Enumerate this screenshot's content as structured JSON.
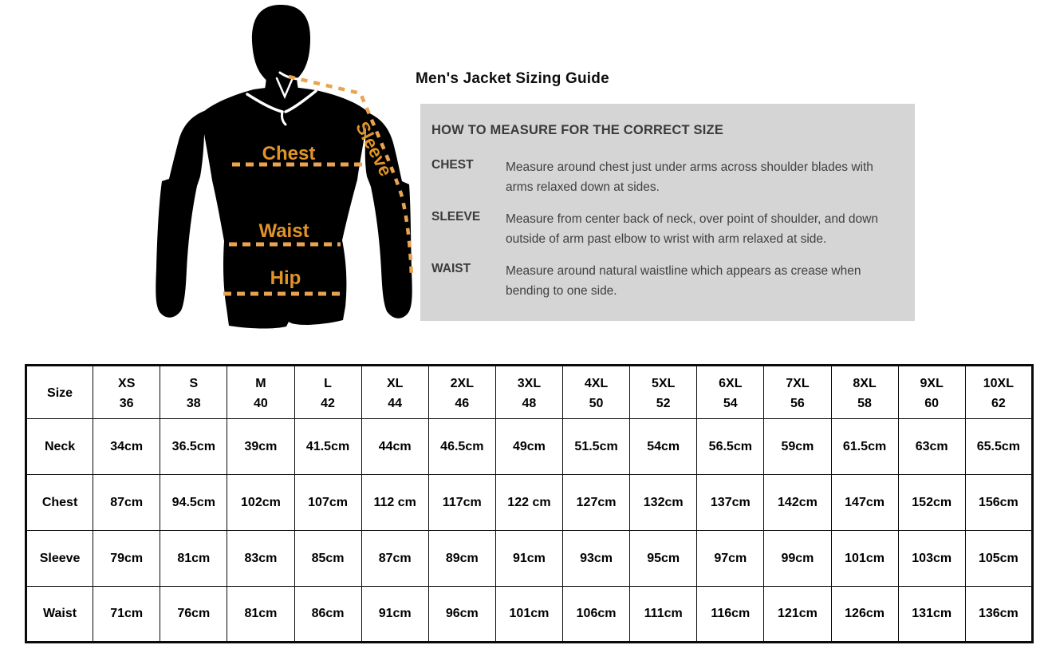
{
  "title": "Men's Jacket Sizing Guide",
  "colors": {
    "dash_orange": "#E9A452",
    "label_orange": "#E09428",
    "gray_box": "#d5d5d5",
    "silhouette": "#000000"
  },
  "figure": {
    "labels": {
      "chest": "Chest",
      "waist": "Waist",
      "hip": "Hip",
      "sleeve": "Sleeve"
    }
  },
  "measure_box": {
    "heading": "HOW TO MEASURE FOR THE CORRECT SIZE",
    "items": [
      {
        "term": "CHEST",
        "desc": "Measure around chest just under arms across shoulder blades with arms relaxed down at sides."
      },
      {
        "term": "SLEEVE",
        "desc": "Measure from center back of neck, over point of shoulder, and down outside of arm past elbow to wrist with arm relaxed at side."
      },
      {
        "term": "WAIST",
        "desc": "Measure around natural waistline which appears as crease when bending to one side."
      }
    ]
  },
  "size_table": {
    "corner_label": "Size",
    "sizes": [
      {
        "name": "XS",
        "num": "36"
      },
      {
        "name": "S",
        "num": "38"
      },
      {
        "name": "M",
        "num": "40"
      },
      {
        "name": "L",
        "num": "42"
      },
      {
        "name": "XL",
        "num": "44"
      },
      {
        "name": "2XL",
        "num": "46"
      },
      {
        "name": "3XL",
        "num": "48"
      },
      {
        "name": "4XL",
        "num": "50"
      },
      {
        "name": "5XL",
        "num": "52"
      },
      {
        "name": "6XL",
        "num": "54"
      },
      {
        "name": "7XL",
        "num": "56"
      },
      {
        "name": "8XL",
        "num": "58"
      },
      {
        "name": "9XL",
        "num": "60"
      },
      {
        "name": "10XL",
        "num": "62"
      }
    ],
    "rows": [
      {
        "label": "Neck",
        "values": [
          "34cm",
          "36.5cm",
          "39cm",
          "41.5cm",
          "44cm",
          "46.5cm",
          "49cm",
          "51.5cm",
          "54cm",
          "56.5cm",
          "59cm",
          "61.5cm",
          "63cm",
          "65.5cm"
        ]
      },
      {
        "label": "Chest",
        "values": [
          "87cm",
          "94.5cm",
          "102cm",
          "107cm",
          "112 cm",
          "117cm",
          "122 cm",
          "127cm",
          "132cm",
          "137cm",
          "142cm",
          "147cm",
          "152cm",
          "156cm"
        ]
      },
      {
        "label": "Sleeve",
        "values": [
          "79cm",
          "81cm",
          "83cm",
          "85cm",
          "87cm",
          "89cm",
          "91cm",
          "93cm",
          "95cm",
          "97cm",
          "99cm",
          "101cm",
          "103cm",
          "105cm"
        ]
      },
      {
        "label": "Waist",
        "values": [
          "71cm",
          "76cm",
          "81cm",
          "86cm",
          "91cm",
          "96cm",
          "101cm",
          "106cm",
          "111cm",
          "116cm",
          "121cm",
          "126cm",
          "131cm",
          "136cm"
        ]
      }
    ]
  }
}
